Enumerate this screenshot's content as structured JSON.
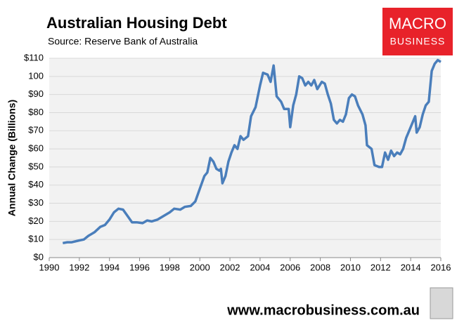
{
  "chart_data": {
    "type": "line",
    "title": "Australian Housing Debt",
    "subtitle": "Source: Reserve Bank of Australia",
    "y_label": "Annual Change (Billions)",
    "color": "#4a7ebb",
    "grid": true,
    "xlim": [
      1990,
      2016
    ],
    "xticks": [
      1990,
      1992,
      1994,
      1996,
      1998,
      2000,
      2002,
      2004,
      2006,
      2008,
      2010,
      2012,
      2014,
      2016
    ],
    "ylim": [
      0,
      110
    ],
    "yticks": [
      {
        "value": 0,
        "label": "$0"
      },
      {
        "value": 10,
        "label": "$10"
      },
      {
        "value": 20,
        "label": "$20"
      },
      {
        "value": 30,
        "label": "$30"
      },
      {
        "value": 40,
        "label": "$40"
      },
      {
        "value": 50,
        "label": "$50"
      },
      {
        "value": 60,
        "label": "$60"
      },
      {
        "value": 70,
        "label": "$70"
      },
      {
        "value": 80,
        "label": "$80"
      },
      {
        "value": 90,
        "label": "$90"
      },
      {
        "value": 100,
        "label": "100"
      },
      {
        "value": 110,
        "label": "$110"
      }
    ],
    "x": [
      1990.9,
      1991.2,
      1991.5,
      1992.0,
      1992.3,
      1992.6,
      1993.0,
      1993.4,
      1993.7,
      1994.0,
      1994.3,
      1994.6,
      1994.9,
      1995.2,
      1995.5,
      1995.8,
      1996.2,
      1996.5,
      1996.8,
      1997.2,
      1997.6,
      1998.0,
      1998.3,
      1998.7,
      1999.0,
      1999.4,
      1999.7,
      2000.0,
      2000.3,
      2000.5,
      2000.7,
      2000.9,
      2001.1,
      2001.3,
      2001.4,
      2001.5,
      2001.7,
      2001.9,
      2002.1,
      2002.3,
      2002.5,
      2002.7,
      2002.9,
      2003.2,
      2003.4,
      2003.7,
      2004.0,
      2004.2,
      2004.5,
      2004.7,
      2004.9,
      2005.1,
      2005.4,
      2005.6,
      2005.9,
      2006.0,
      2006.2,
      2006.4,
      2006.6,
      2006.8,
      2007.0,
      2007.2,
      2007.4,
      2007.6,
      2007.8,
      2008.1,
      2008.3,
      2008.5,
      2008.7,
      2008.9,
      2009.1,
      2009.3,
      2009.5,
      2009.7,
      2009.9,
      2010.1,
      2010.3,
      2010.5,
      2010.8,
      2011.0,
      2011.1,
      2011.4,
      2011.6,
      2011.9,
      2012.1,
      2012.3,
      2012.5,
      2012.7,
      2012.9,
      2013.1,
      2013.3,
      2013.5,
      2013.7,
      2013.9,
      2014.1,
      2014.3,
      2014.4,
      2014.6,
      2014.8,
      2015.0,
      2015.2,
      2015.4,
      2015.6,
      2015.8,
      2016.0
    ],
    "values": [
      8,
      8.5,
      8.5,
      9.5,
      10,
      12,
      14,
      17,
      18,
      21,
      25,
      27,
      26.5,
      23,
      19.5,
      19.5,
      19,
      20.5,
      20,
      21,
      23,
      25,
      27,
      26.5,
      28,
      28.5,
      31,
      38,
      45,
      47,
      55,
      53,
      49,
      48,
      49,
      41,
      45,
      53,
      58,
      62,
      60,
      67,
      65,
      67,
      78,
      83,
      95,
      102,
      101,
      97,
      106,
      89,
      86,
      82,
      82,
      72,
      84,
      90,
      100,
      99,
      95,
      97,
      95,
      98,
      93,
      97,
      96,
      90,
      85,
      76,
      74,
      76,
      75,
      79,
      88,
      90,
      89,
      84,
      79,
      73,
      62,
      60,
      51,
      50,
      50,
      58,
      54,
      59,
      56,
      58,
      57,
      60,
      66,
      70,
      74,
      78,
      69,
      72,
      79,
      84,
      86,
      103,
      107,
      109,
      108
    ]
  },
  "branding": {
    "logo_top": "MACRO",
    "logo_bottom": "BUSINESS",
    "website": "www.macrobusiness.com.au"
  }
}
